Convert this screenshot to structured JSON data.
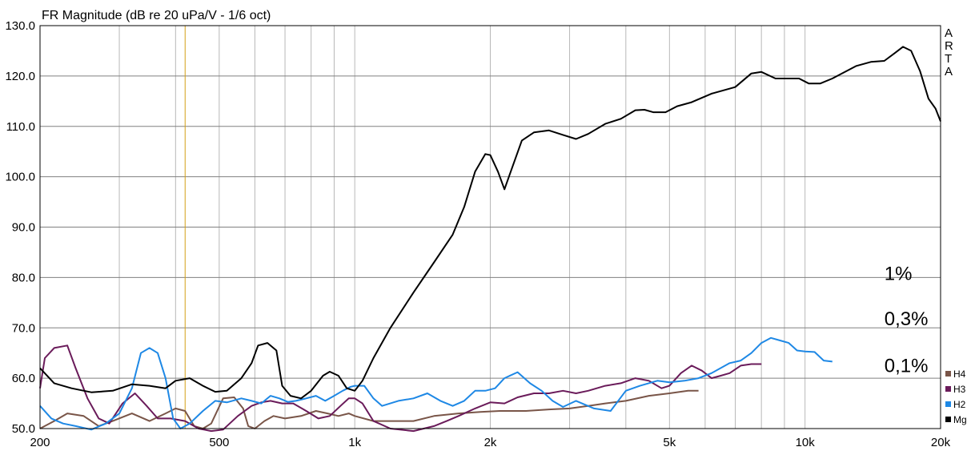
{
  "chart_data": {
    "type": "line",
    "title": "FR Magnitude (dB re 20 uPa/V - 1/6 oct)",
    "brand": "ARTA",
    "x_scale": "log",
    "xlim": [
      200,
      20000
    ],
    "ylim": [
      50,
      130
    ],
    "x_ticks": [
      {
        "value": 200,
        "label": "200"
      },
      {
        "value": 500,
        "label": "500"
      },
      {
        "value": 1000,
        "label": "1k"
      },
      {
        "value": 2000,
        "label": "2k"
      },
      {
        "value": 5000,
        "label": "5k"
      },
      {
        "value": 10000,
        "label": "10k"
      },
      {
        "value": 20000,
        "label": "20k"
      }
    ],
    "y_ticks": [
      {
        "value": 50,
        "label": "50.0"
      },
      {
        "value": 60,
        "label": "60.0"
      },
      {
        "value": 70,
        "label": "70.0"
      },
      {
        "value": 80,
        "label": "80.0"
      },
      {
        "value": 90,
        "label": "90.0"
      },
      {
        "value": 100,
        "label": "100.0"
      },
      {
        "value": 110,
        "label": "110.0"
      },
      {
        "value": 120,
        "label": "120.0"
      },
      {
        "value": 130,
        "label": "130.0"
      }
    ],
    "grid": true,
    "marker_line": {
      "x": 420,
      "color": "#d4a017"
    },
    "legend_position": "bottom-right",
    "annotations": [
      {
        "text": "1%",
        "x": 15000,
        "y": 79.5
      },
      {
        "text": "0,3%",
        "x": 15000,
        "y": 70.5
      },
      {
        "text": "0,1%",
        "x": 15000,
        "y": 61.2
      }
    ],
    "series": [
      {
        "name": "Mg",
        "color": "#000000",
        "points": [
          [
            200,
            62
          ],
          [
            215,
            59
          ],
          [
            235,
            58
          ],
          [
            260,
            57.2
          ],
          [
            290,
            57.5
          ],
          [
            320,
            58.8
          ],
          [
            350,
            58.5
          ],
          [
            380,
            58
          ],
          [
            400,
            59.5
          ],
          [
            430,
            60
          ],
          [
            460,
            58.5
          ],
          [
            490,
            57.3
          ],
          [
            520,
            57.5
          ],
          [
            560,
            60
          ],
          [
            590,
            63
          ],
          [
            610,
            66.5
          ],
          [
            640,
            67
          ],
          [
            670,
            65.5
          ],
          [
            690,
            58.5
          ],
          [
            720,
            56.5
          ],
          [
            760,
            56
          ],
          [
            800,
            57.5
          ],
          [
            850,
            60.5
          ],
          [
            880,
            61.3
          ],
          [
            920,
            60.5
          ],
          [
            960,
            58
          ],
          [
            1000,
            57.5
          ],
          [
            1040,
            59.5
          ],
          [
            1100,
            64
          ],
          [
            1200,
            70
          ],
          [
            1350,
            77
          ],
          [
            1500,
            83
          ],
          [
            1650,
            88.5
          ],
          [
            1750,
            94
          ],
          [
            1850,
            101
          ],
          [
            1950,
            104.5
          ],
          [
            2000,
            104.3
          ],
          [
            2080,
            101
          ],
          [
            2150,
            97.5
          ],
          [
            2220,
            101
          ],
          [
            2350,
            107.2
          ],
          [
            2500,
            108.8
          ],
          [
            2700,
            109.2
          ],
          [
            2900,
            108.3
          ],
          [
            3100,
            107.5
          ],
          [
            3300,
            108.5
          ],
          [
            3600,
            110.5
          ],
          [
            3900,
            111.5
          ],
          [
            4200,
            113.2
          ],
          [
            4400,
            113.3
          ],
          [
            4600,
            112.8
          ],
          [
            4900,
            112.8
          ],
          [
            5200,
            114
          ],
          [
            5600,
            114.8
          ],
          [
            6200,
            116.5
          ],
          [
            7000,
            117.8
          ],
          [
            7600,
            120.5
          ],
          [
            8000,
            120.8
          ],
          [
            8600,
            119.5
          ],
          [
            9200,
            119.5
          ],
          [
            9700,
            119.5
          ],
          [
            10200,
            118.5
          ],
          [
            10800,
            118.5
          ],
          [
            11500,
            119.5
          ],
          [
            13000,
            122
          ],
          [
            14000,
            122.8
          ],
          [
            15000,
            123
          ],
          [
            15800,
            124.5
          ],
          [
            16500,
            125.8
          ],
          [
            17200,
            125
          ],
          [
            18000,
            121
          ],
          [
            18800,
            115.5
          ],
          [
            19500,
            113.5
          ],
          [
            20000,
            111
          ]
        ]
      },
      {
        "name": "H2",
        "color": "#1e88e5",
        "points": [
          [
            200,
            54.5
          ],
          [
            212,
            52
          ],
          [
            225,
            51
          ],
          [
            240,
            50.5
          ],
          [
            260,
            49.8
          ],
          [
            280,
            51
          ],
          [
            300,
            53
          ],
          [
            320,
            58
          ],
          [
            335,
            65
          ],
          [
            350,
            66
          ],
          [
            365,
            65
          ],
          [
            380,
            60
          ],
          [
            395,
            52
          ],
          [
            410,
            50
          ],
          [
            430,
            51
          ],
          [
            460,
            53.5
          ],
          [
            490,
            55.5
          ],
          [
            520,
            55.2
          ],
          [
            560,
            56
          ],
          [
            590,
            55.5
          ],
          [
            620,
            55
          ],
          [
            650,
            56.5
          ],
          [
            680,
            56
          ],
          [
            710,
            55.3
          ],
          [
            740,
            55.5
          ],
          [
            780,
            56
          ],
          [
            820,
            56.5
          ],
          [
            860,
            55.5
          ],
          [
            900,
            56.5
          ],
          [
            940,
            57.5
          ],
          [
            980,
            58.3
          ],
          [
            1000,
            58.5
          ],
          [
            1050,
            58.5
          ],
          [
            1100,
            56
          ],
          [
            1150,
            54.5
          ],
          [
            1250,
            55.5
          ],
          [
            1350,
            56
          ],
          [
            1450,
            57
          ],
          [
            1550,
            55.5
          ],
          [
            1650,
            54.5
          ],
          [
            1750,
            55.5
          ],
          [
            1850,
            57.5
          ],
          [
            1950,
            57.5
          ],
          [
            2050,
            58
          ],
          [
            2150,
            60
          ],
          [
            2300,
            61.2
          ],
          [
            2450,
            59
          ],
          [
            2600,
            57.5
          ],
          [
            2750,
            55.5
          ],
          [
            2900,
            54.3
          ],
          [
            3100,
            55.5
          ],
          [
            3400,
            54
          ],
          [
            3700,
            53.5
          ],
          [
            4000,
            57.5
          ],
          [
            4300,
            58.5
          ],
          [
            4700,
            59.5
          ],
          [
            5000,
            59.2
          ],
          [
            5400,
            59.5
          ],
          [
            5800,
            60
          ],
          [
            6200,
            61
          ],
          [
            6800,
            63
          ],
          [
            7200,
            63.5
          ],
          [
            7600,
            65
          ],
          [
            8000,
            67
          ],
          [
            8400,
            68
          ],
          [
            8800,
            67.5
          ],
          [
            9200,
            67
          ],
          [
            9600,
            65.5
          ],
          [
            10000,
            65.3
          ],
          [
            10500,
            65.2
          ],
          [
            11000,
            63.5
          ],
          [
            11500,
            63.3
          ]
        ]
      },
      {
        "name": "H3",
        "color": "#6a1b5a",
        "points": [
          [
            200,
            58
          ],
          [
            205,
            64
          ],
          [
            215,
            66
          ],
          [
            230,
            66.5
          ],
          [
            240,
            62
          ],
          [
            255,
            56
          ],
          [
            270,
            52
          ],
          [
            285,
            51
          ],
          [
            305,
            55
          ],
          [
            325,
            57
          ],
          [
            345,
            54.5
          ],
          [
            365,
            52
          ],
          [
            390,
            52
          ],
          [
            420,
            51.5
          ],
          [
            450,
            50
          ],
          [
            480,
            49.5
          ],
          [
            510,
            49.8
          ],
          [
            550,
            52.5
          ],
          [
            590,
            54.5
          ],
          [
            620,
            55.2
          ],
          [
            650,
            55.5
          ],
          [
            690,
            55
          ],
          [
            730,
            55
          ],
          [
            780,
            53.5
          ],
          [
            830,
            52
          ],
          [
            880,
            52.5
          ],
          [
            930,
            54.5
          ],
          [
            970,
            56
          ],
          [
            1000,
            56
          ],
          [
            1040,
            55
          ],
          [
            1100,
            51.5
          ],
          [
            1200,
            50
          ],
          [
            1350,
            49.5
          ],
          [
            1500,
            50.5
          ],
          [
            1600,
            51.5
          ],
          [
            1700,
            52.5
          ],
          [
            1850,
            54
          ],
          [
            2000,
            55.2
          ],
          [
            2150,
            55
          ],
          [
            2300,
            56.2
          ],
          [
            2500,
            57
          ],
          [
            2700,
            57
          ],
          [
            2900,
            57.5
          ],
          [
            3100,
            57
          ],
          [
            3300,
            57.5
          ],
          [
            3600,
            58.5
          ],
          [
            3900,
            59
          ],
          [
            4200,
            60
          ],
          [
            4500,
            59.5
          ],
          [
            4800,
            58
          ],
          [
            5000,
            58.5
          ],
          [
            5300,
            61
          ],
          [
            5600,
            62.5
          ],
          [
            5900,
            61.5
          ],
          [
            6200,
            60
          ],
          [
            6500,
            60.5
          ],
          [
            6800,
            61
          ],
          [
            7200,
            62.5
          ],
          [
            7600,
            62.8
          ],
          [
            8000,
            62.8
          ]
        ]
      },
      {
        "name": "H4",
        "color": "#795548",
        "points": [
          [
            200,
            50
          ],
          [
            215,
            51.5
          ],
          [
            230,
            53
          ],
          [
            250,
            52.5
          ],
          [
            270,
            50.5
          ],
          [
            290,
            51.5
          ],
          [
            320,
            53
          ],
          [
            350,
            51.5
          ],
          [
            380,
            53
          ],
          [
            400,
            54
          ],
          [
            420,
            53.5
          ],
          [
            440,
            50.5
          ],
          [
            460,
            50
          ],
          [
            480,
            51
          ],
          [
            510,
            56
          ],
          [
            540,
            56.2
          ],
          [
            565,
            54
          ],
          [
            580,
            50.5
          ],
          [
            600,
            50
          ],
          [
            630,
            51.5
          ],
          [
            660,
            52.5
          ],
          [
            700,
            52
          ],
          [
            760,
            52.5
          ],
          [
            820,
            53.5
          ],
          [
            870,
            53
          ],
          [
            920,
            52.5
          ],
          [
            970,
            53
          ],
          [
            1000,
            52.5
          ],
          [
            1100,
            51.5
          ],
          [
            1200,
            51.5
          ],
          [
            1350,
            51.5
          ],
          [
            1500,
            52.5
          ],
          [
            1700,
            53
          ],
          [
            1900,
            53.3
          ],
          [
            2100,
            53.5
          ],
          [
            2400,
            53.5
          ],
          [
            2700,
            53.8
          ],
          [
            3000,
            54
          ],
          [
            3300,
            54.5
          ],
          [
            3600,
            55
          ],
          [
            4000,
            55.5
          ],
          [
            4500,
            56.5
          ],
          [
            5000,
            57
          ],
          [
            5500,
            57.5
          ],
          [
            5800,
            57.5
          ]
        ]
      }
    ],
    "legend": [
      {
        "name": "H4",
        "color": "#795548"
      },
      {
        "name": "H3",
        "color": "#6a1b5a"
      },
      {
        "name": "H2",
        "color": "#1e88e5"
      },
      {
        "name": "Mg",
        "color": "#000000"
      }
    ]
  }
}
